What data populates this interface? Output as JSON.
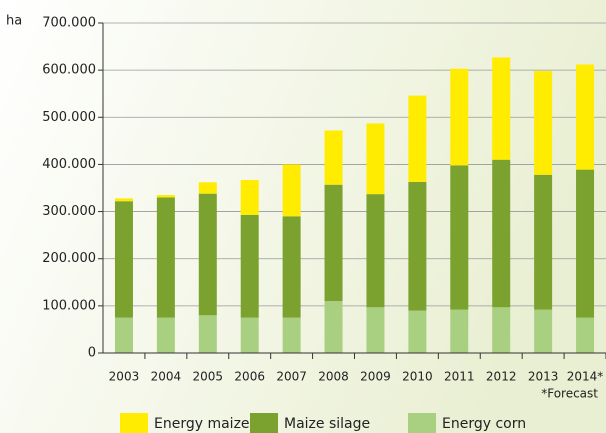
{
  "chart_data": {
    "type": "stacked_bar",
    "unit_label": "ha",
    "note": "*Forecast",
    "categories": [
      "2003",
      "2004",
      "2005",
      "2006",
      "2007",
      "2008",
      "2009",
      "2010",
      "2011",
      "2012",
      "2013",
      "2014*"
    ],
    "series": [
      {
        "name": "Energy maize",
        "color": "#ffec00",
        "values": [
          6000,
          5000,
          24000,
          74000,
          110000,
          115000,
          150000,
          183000,
          205000,
          217000,
          220000,
          223000
        ]
      },
      {
        "name": "Maize silage",
        "color": "#7ba22e",
        "values": [
          247000,
          255000,
          258000,
          218000,
          215000,
          247000,
          240000,
          273000,
          306000,
          313000,
          286000,
          314000
        ]
      },
      {
        "name": "Energy corn",
        "color": "#a9cf80",
        "values": [
          75000,
          75000,
          80000,
          75000,
          75000,
          110000,
          97000,
          90000,
          92000,
          97000,
          92000,
          75000
        ]
      }
    ],
    "ylim": [
      0,
      700000
    ],
    "yticks": [
      {
        "value": 0,
        "label": "0"
      },
      {
        "value": 100000,
        "label": "100.000"
      },
      {
        "value": 200000,
        "label": "200.000"
      },
      {
        "value": 300000,
        "label": "300.000"
      },
      {
        "value": 400000,
        "label": "400.000"
      },
      {
        "value": 500000,
        "label": "500.000"
      },
      {
        "value": 600000,
        "label": "600.000"
      },
      {
        "value": 700000,
        "label": "700.000"
      }
    ],
    "grid": true
  }
}
